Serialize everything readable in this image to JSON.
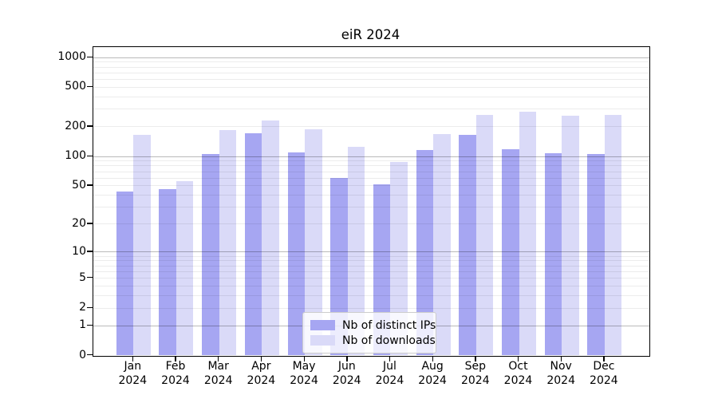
{
  "title": "eiR 2024",
  "chart_data": {
    "type": "bar",
    "title": "eiR 2024",
    "yscale": "log1p",
    "ylim": [
      0,
      1280
    ],
    "grid": true,
    "legend_position": "lower center",
    "xlabel": "",
    "ylabel": "",
    "categories": [
      "Jan",
      "Feb",
      "Mar",
      "Apr",
      "May",
      "Jun",
      "Jul",
      "Aug",
      "Sep",
      "Oct",
      "Nov",
      "Dec"
    ],
    "x_tick_year": "2024",
    "y_ticks": [
      0,
      1,
      2,
      5,
      10,
      20,
      50,
      100,
      200,
      500,
      1000
    ],
    "y_major_grid": [
      1,
      10,
      100,
      1000
    ],
    "series": [
      {
        "name": "Nb of distinct IPs",
        "color": "#a6a6f2",
        "values": [
          44,
          46,
          105,
          172,
          110,
          60,
          52,
          116,
          165,
          118,
          107,
          105
        ]
      },
      {
        "name": "Nb of downloads",
        "color": "#dadaf8",
        "values": [
          165,
          56,
          184,
          231,
          187,
          126,
          88,
          169,
          262,
          284,
          259,
          264
        ]
      }
    ]
  }
}
